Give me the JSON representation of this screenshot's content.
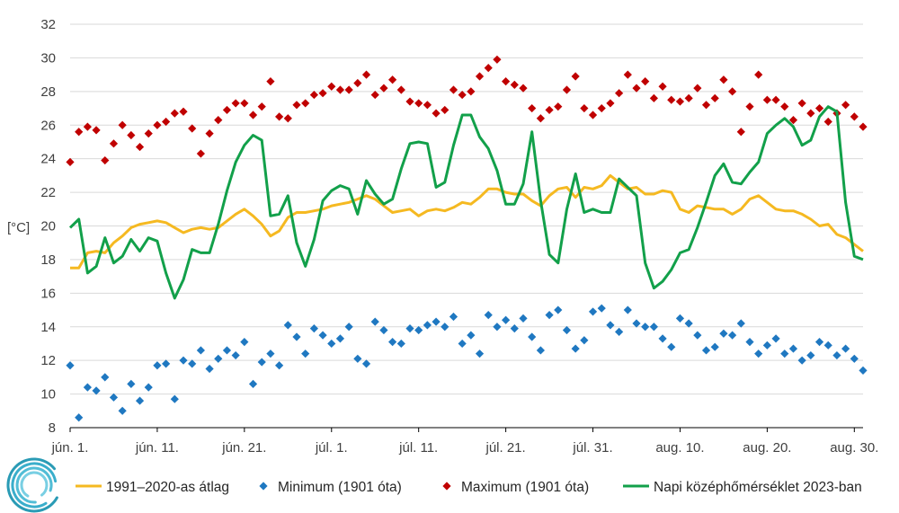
{
  "chart_data": {
    "type": "line",
    "ylabel": "[°C]",
    "ylim": [
      8,
      32
    ],
    "yticks": [
      8,
      10,
      12,
      14,
      16,
      18,
      20,
      22,
      24,
      26,
      28,
      30,
      32
    ],
    "grid": "horizontal",
    "legend_position": "bottom",
    "x_start": "jún. 1.",
    "x_tick_labels": [
      "jún. 1.",
      "jún. 11.",
      "jún. 21.",
      "júl. 1.",
      "júl. 11.",
      "júl. 21.",
      "júl. 31.",
      "aug. 10.",
      "aug. 20.",
      "aug. 30."
    ],
    "x_tick_days": [
      1,
      11,
      21,
      31,
      41,
      51,
      61,
      71,
      81,
      91
    ],
    "colors": {
      "avg": "#f5b921",
      "min": "#1f78c1",
      "max": "#c00000",
      "daily": "#12a04a",
      "grid": "#d9d9d9",
      "axis": "#000000"
    },
    "series": [
      {
        "name": "1991–2020-as átlag",
        "kind": "line",
        "color_key": "avg",
        "values": [
          17.5,
          17.5,
          18.4,
          18.5,
          18.4,
          19.0,
          19.4,
          19.9,
          20.1,
          20.2,
          20.3,
          20.2,
          19.9,
          19.6,
          19.8,
          19.9,
          19.8,
          19.9,
          20.3,
          20.7,
          21.0,
          20.6,
          20.1,
          19.4,
          19.7,
          20.5,
          20.8,
          20.8,
          20.9,
          21.0,
          21.2,
          21.3,
          21.4,
          21.6,
          21.8,
          21.6,
          21.2,
          20.8,
          20.9,
          21.0,
          20.6,
          20.9,
          21.0,
          20.9,
          21.1,
          21.4,
          21.3,
          21.7,
          22.2,
          22.2,
          22.0,
          21.9,
          21.9,
          21.5,
          21.2,
          21.8,
          22.2,
          22.3,
          21.7,
          22.3,
          22.2,
          22.4,
          23.0,
          22.6,
          22.2,
          22.3,
          21.9,
          21.9,
          22.1,
          22.0,
          21.0,
          20.8,
          21.2,
          21.1,
          21.0,
          21.0,
          20.7,
          21.0,
          21.6,
          21.8,
          21.4,
          21.0,
          20.9,
          20.9,
          20.7,
          20.4,
          20.0,
          20.1,
          19.5,
          19.3,
          18.9,
          18.5
        ]
      },
      {
        "name": "Minimum (1901 óta)",
        "kind": "markers",
        "marker": "diamond",
        "color_key": "min",
        "values": [
          11.7,
          8.6,
          10.4,
          10.2,
          11.0,
          9.8,
          9.0,
          10.6,
          9.6,
          10.4,
          11.7,
          11.8,
          9.7,
          12.0,
          11.8,
          12.6,
          11.5,
          12.1,
          12.6,
          12.3,
          13.1,
          10.6,
          11.9,
          12.4,
          11.7,
          14.1,
          13.4,
          12.4,
          13.9,
          13.5,
          13.0,
          13.3,
          14.0,
          12.1,
          11.8,
          14.3,
          13.8,
          13.1,
          13.0,
          13.9,
          13.8,
          14.1,
          14.3,
          14.0,
          14.6,
          13.0,
          13.5,
          12.4,
          14.7,
          14.0,
          14.4,
          13.9,
          14.5,
          13.4,
          12.6,
          14.7,
          15.0,
          13.8,
          12.7,
          13.2,
          14.9,
          15.1,
          14.1,
          13.7,
          15.0,
          14.2,
          14.0,
          14.0,
          13.3,
          12.8,
          14.5,
          14.2,
          13.5,
          12.6,
          12.8,
          13.6,
          13.5,
          14.2,
          13.1,
          12.4,
          12.9,
          13.3,
          12.4,
          12.7,
          12.0,
          12.3,
          13.1,
          12.9,
          12.3,
          12.7,
          12.1,
          11.4
        ]
      },
      {
        "name": "Maximum (1901 óta)",
        "kind": "markers",
        "marker": "diamond",
        "color_key": "max",
        "values": [
          23.8,
          25.6,
          25.9,
          25.7,
          23.9,
          24.9,
          26.0,
          25.4,
          24.7,
          25.5,
          26.0,
          26.2,
          26.7,
          26.8,
          25.8,
          24.3,
          25.5,
          26.3,
          26.9,
          27.3,
          27.3,
          26.6,
          27.1,
          28.6,
          26.5,
          26.4,
          27.2,
          27.3,
          27.8,
          27.9,
          28.3,
          28.1,
          28.1,
          28.5,
          29.0,
          27.8,
          28.2,
          28.7,
          28.1,
          27.4,
          27.3,
          27.2,
          26.7,
          26.9,
          28.1,
          27.8,
          28.0,
          28.9,
          29.4,
          29.9,
          28.6,
          28.4,
          28.2,
          27.0,
          26.4,
          26.9,
          27.1,
          28.1,
          28.9,
          27.0,
          26.6,
          27.0,
          27.3,
          27.9,
          29.0,
          28.2,
          28.6,
          27.6,
          28.3,
          27.5,
          27.4,
          27.6,
          28.2,
          27.2,
          27.6,
          28.7,
          28.0,
          25.6,
          27.1,
          29.0,
          27.5,
          27.5,
          27.1,
          26.3,
          27.3,
          26.7,
          27.0,
          26.2,
          26.7,
          27.2,
          26.5,
          25.9
        ]
      },
      {
        "name": "Napi középhőmérséklet 2023-ban",
        "kind": "line",
        "color_key": "daily",
        "values": [
          19.9,
          20.4,
          17.2,
          17.6,
          19.3,
          17.8,
          18.2,
          19.2,
          18.5,
          19.3,
          19.1,
          17.2,
          15.7,
          16.8,
          18.6,
          18.4,
          18.4,
          20.1,
          22.1,
          23.8,
          24.8,
          25.4,
          25.1,
          20.6,
          20.7,
          21.8,
          19.0,
          17.6,
          19.2,
          21.5,
          22.1,
          22.4,
          22.2,
          20.7,
          22.7,
          21.9,
          21.3,
          21.6,
          23.4,
          24.9,
          25.0,
          24.9,
          22.3,
          22.6,
          24.8,
          26.6,
          26.6,
          25.3,
          24.6,
          23.3,
          21.3,
          21.3,
          22.5,
          25.6,
          21.5,
          18.3,
          17.8,
          21.0,
          23.1,
          20.8,
          21.0,
          20.8,
          20.8,
          22.8,
          22.3,
          21.8,
          17.8,
          16.3,
          16.7,
          17.4,
          18.4,
          18.6,
          19.9,
          21.4,
          23.0,
          23.7,
          22.6,
          22.5,
          23.2,
          23.8,
          25.5,
          26.0,
          26.4,
          25.9,
          24.8,
          25.1,
          26.5,
          27.1,
          26.8,
          21.4,
          18.2,
          18.0
        ]
      }
    ]
  }
}
